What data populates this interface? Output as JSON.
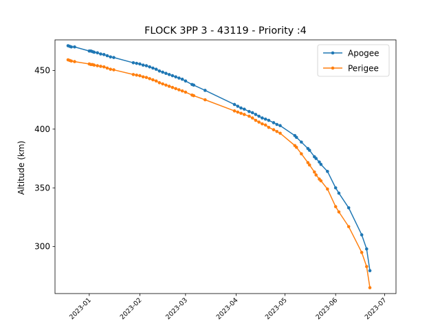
{
  "chart_data": {
    "type": "line",
    "title": "FLOCK 3PP 3 - 43119 - Priority :4",
    "xlabel": "",
    "ylabel": "Altitude (km)",
    "x_ticks": [
      "2023-01",
      "2023-02",
      "2023-03",
      "2023-04",
      "2023-05",
      "2023-06",
      "2023-07"
    ],
    "y_ticks": [
      300,
      350,
      400,
      450
    ],
    "xlim": [
      "2022-12-11",
      "2023-07-08"
    ],
    "ylim": [
      260,
      476
    ],
    "grid": false,
    "legend": "top-right",
    "series": [
      {
        "name": "Apogee",
        "color": "#1f77b4",
        "points": [
          [
            "2022-12-19",
            471
          ],
          [
            "2022-12-20",
            470.5
          ],
          [
            "2022-12-21",
            470
          ],
          [
            "2022-12-23",
            470
          ],
          [
            "2023-01-01",
            466.5
          ],
          [
            "2023-01-02",
            466.5
          ],
          [
            "2023-01-03",
            466
          ],
          [
            "2023-01-04",
            465.5
          ],
          [
            "2023-01-06",
            465
          ],
          [
            "2023-01-08",
            464
          ],
          [
            "2023-01-10",
            463.5
          ],
          [
            "2023-01-12",
            462.5
          ],
          [
            "2023-01-14",
            461.5
          ],
          [
            "2023-01-16",
            461
          ],
          [
            "2023-01-28",
            456.5
          ],
          [
            "2023-01-30",
            456
          ],
          [
            "2023-02-01",
            455.5
          ],
          [
            "2023-02-03",
            454.5
          ],
          [
            "2023-02-05",
            454
          ],
          [
            "2023-02-07",
            453
          ],
          [
            "2023-02-09",
            452
          ],
          [
            "2023-02-11",
            451
          ],
          [
            "2023-02-13",
            449.5
          ],
          [
            "2023-02-15",
            448.5
          ],
          [
            "2023-02-17",
            447.5
          ],
          [
            "2023-02-19",
            446.5
          ],
          [
            "2023-02-21",
            445.5
          ],
          [
            "2023-02-23",
            444.5
          ],
          [
            "2023-02-25",
            443.5
          ],
          [
            "2023-02-27",
            442.5
          ],
          [
            "2023-03-01",
            441
          ],
          [
            "2023-03-05",
            438
          ],
          [
            "2023-03-06",
            437.5
          ],
          [
            "2023-03-13",
            433
          ],
          [
            "2023-03-31",
            421
          ],
          [
            "2023-04-02",
            419.5
          ],
          [
            "2023-04-04",
            418
          ],
          [
            "2023-04-06",
            417
          ],
          [
            "2023-04-09",
            415
          ],
          [
            "2023-04-11",
            414
          ],
          [
            "2023-04-13",
            412.5
          ],
          [
            "2023-04-15",
            411
          ],
          [
            "2023-04-17",
            409.5
          ],
          [
            "2023-04-19",
            408.5
          ],
          [
            "2023-04-21",
            407.5
          ],
          [
            "2023-04-24",
            405.5
          ],
          [
            "2023-04-26",
            404
          ],
          [
            "2023-04-28",
            403
          ],
          [
            "2023-05-07",
            394.5
          ],
          [
            "2023-05-08",
            393
          ],
          [
            "2023-05-11",
            389
          ],
          [
            "2023-05-15",
            383.5
          ],
          [
            "2023-05-16",
            382
          ],
          [
            "2023-05-19",
            376.5
          ],
          [
            "2023-05-20",
            375
          ],
          [
            "2023-05-22",
            372
          ],
          [
            "2023-05-23",
            370
          ],
          [
            "2023-05-27",
            364
          ],
          [
            "2023-06-01",
            350
          ],
          [
            "2023-06-03",
            345.5
          ],
          [
            "2023-06-09",
            333
          ],
          [
            "2023-06-17",
            310
          ],
          [
            "2023-06-20",
            298
          ],
          [
            "2023-06-22",
            279.5
          ]
        ]
      },
      {
        "name": "Perigee",
        "color": "#ff7f0e",
        "points": [
          [
            "2022-12-19",
            459
          ],
          [
            "2022-12-20",
            458.5
          ],
          [
            "2022-12-21",
            458
          ],
          [
            "2022-12-23",
            457.5
          ],
          [
            "2023-01-01",
            455.5
          ],
          [
            "2023-01-02",
            455
          ],
          [
            "2023-01-03",
            455
          ],
          [
            "2023-01-04",
            454.5
          ],
          [
            "2023-01-06",
            454
          ],
          [
            "2023-01-08",
            453.5
          ],
          [
            "2023-01-10",
            453
          ],
          [
            "2023-01-12",
            452
          ],
          [
            "2023-01-14",
            451
          ],
          [
            "2023-01-16",
            450.5
          ],
          [
            "2023-01-28",
            446.5
          ],
          [
            "2023-01-30",
            446
          ],
          [
            "2023-02-01",
            445.5
          ],
          [
            "2023-02-03",
            444.5
          ],
          [
            "2023-02-05",
            444
          ],
          [
            "2023-02-07",
            443
          ],
          [
            "2023-02-09",
            442
          ],
          [
            "2023-02-11",
            441
          ],
          [
            "2023-02-13",
            439.5
          ],
          [
            "2023-02-15",
            438.5
          ],
          [
            "2023-02-17",
            437.5
          ],
          [
            "2023-02-19",
            436.5
          ],
          [
            "2023-02-21",
            435.5
          ],
          [
            "2023-02-23",
            434.5
          ],
          [
            "2023-02-25",
            433.5
          ],
          [
            "2023-02-27",
            432.5
          ],
          [
            "2023-03-01",
            431.5
          ],
          [
            "2023-03-05",
            429
          ],
          [
            "2023-03-06",
            428.5
          ],
          [
            "2023-03-13",
            425
          ],
          [
            "2023-03-31",
            415.5
          ],
          [
            "2023-04-02",
            414.5
          ],
          [
            "2023-04-04",
            413.5
          ],
          [
            "2023-04-06",
            412.5
          ],
          [
            "2023-04-09",
            411
          ],
          [
            "2023-04-11",
            409.5
          ],
          [
            "2023-04-13",
            407.5
          ],
          [
            "2023-04-15",
            406
          ],
          [
            "2023-04-17",
            404.5
          ],
          [
            "2023-04-19",
            403.5
          ],
          [
            "2023-04-21",
            401.5
          ],
          [
            "2023-04-24",
            399.5
          ],
          [
            "2023-04-26",
            398
          ],
          [
            "2023-04-28",
            396.5
          ],
          [
            "2023-05-07",
            386
          ],
          [
            "2023-05-08",
            384.5
          ],
          [
            "2023-05-11",
            379
          ],
          [
            "2023-05-15",
            371.5
          ],
          [
            "2023-05-16",
            369.5
          ],
          [
            "2023-05-19",
            363.5
          ],
          [
            "2023-05-20",
            361
          ],
          [
            "2023-05-22",
            357.5
          ],
          [
            "2023-05-23",
            356
          ],
          [
            "2023-05-27",
            349
          ],
          [
            "2023-06-01",
            334
          ],
          [
            "2023-06-03",
            329.5
          ],
          [
            "2023-06-09",
            317
          ],
          [
            "2023-06-17",
            295
          ],
          [
            "2023-06-20",
            283
          ],
          [
            "2023-06-22",
            265
          ]
        ]
      }
    ]
  }
}
